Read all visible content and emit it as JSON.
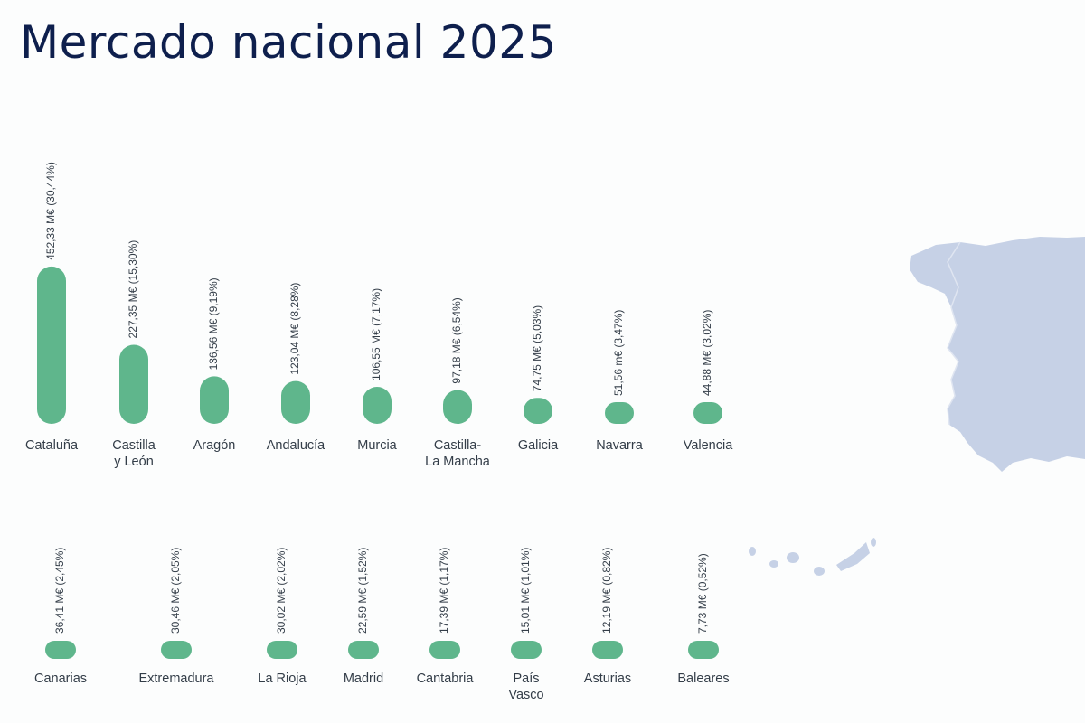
{
  "title": "Mercado nacional 2025",
  "colors": {
    "bar": "#5fb68c",
    "title": "#0e1f4d",
    "map": "#c6d1e6"
  },
  "map": {
    "icon": "spain-map-icon"
  },
  "chart_data": [
    {
      "type": "bar",
      "categories": [
        [
          "Cataluña"
        ],
        [
          "Castilla",
          "y León"
        ],
        [
          "Aragón"
        ],
        [
          "Andalucía"
        ],
        [
          "Murcia"
        ],
        [
          "Castilla-",
          "La Mancha"
        ],
        [
          "Galicia"
        ],
        [
          "Navarra"
        ],
        [
          "Valencia"
        ]
      ],
      "values": [
        452.33,
        227.35,
        136.56,
        123.04,
        106.55,
        97.18,
        74.75,
        51.56,
        44.88
      ],
      "value_labels": [
        "452,33 M€ (30,44%)",
        "227,35 M€ (15,30%)",
        "136,56 M€ (9,19%)",
        "123,04 M€ (8,28%)",
        "106,55 M€  (7,17%)",
        "97,18 M€ (6,54%)",
        "74,75 M€ (5,03%)",
        "51,56 m€ (3,47%)",
        "44,88 M€ (3,02%)"
      ]
    },
    {
      "type": "bar",
      "categories": [
        [
          "Canarias"
        ],
        [
          "Extremadura"
        ],
        [
          "La Rioja"
        ],
        [
          "Madrid"
        ],
        [
          "Cantabria"
        ],
        [
          "País",
          "Vasco"
        ],
        [
          "Asturias"
        ],
        [
          "Baleares"
        ]
      ],
      "values": [
        36.41,
        30.46,
        30.02,
        22.59,
        17.39,
        15.01,
        12.19,
        7.73
      ],
      "value_labels": [
        "36,41 M€ (2,45%)",
        "30,46 M€  (2,05%)",
        "30,02 M€ (2,02%)",
        "22,59 M€ (1,52%)",
        "17,39 M€ (1,17%)",
        "15,01 M€ (1,01%)",
        "12,19 M€ (0,82%)",
        "7,73 M€ (0,52%)"
      ]
    }
  ]
}
